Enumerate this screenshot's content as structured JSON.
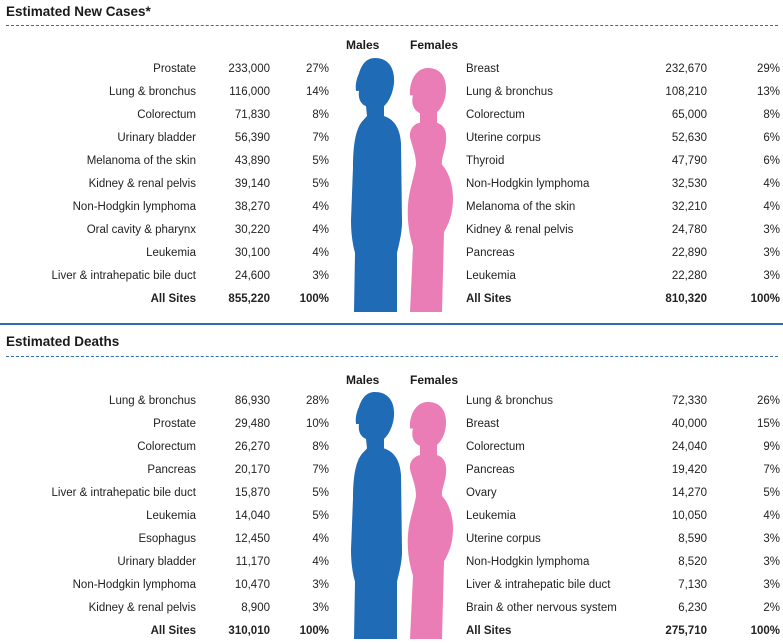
{
  "new_cases": {
    "title": "Estimated New Cases*",
    "males_label": "Males",
    "females_label": "Females",
    "males": [
      {
        "site": "Prostate",
        "count": "233,000",
        "pct": "27%"
      },
      {
        "site": "Lung & bronchus",
        "count": "116,000",
        "pct": "14%"
      },
      {
        "site": "Colorectum",
        "count": "71,830",
        "pct": "8%"
      },
      {
        "site": "Urinary bladder",
        "count": "56,390",
        "pct": "7%"
      },
      {
        "site": "Melanoma of the skin",
        "count": "43,890",
        "pct": "5%"
      },
      {
        "site": "Kidney & renal pelvis",
        "count": "39,140",
        "pct": "5%"
      },
      {
        "site": "Non-Hodgkin lymphoma",
        "count": "38,270",
        "pct": "4%"
      },
      {
        "site": "Oral cavity & pharynx",
        "count": "30,220",
        "pct": "4%"
      },
      {
        "site": "Leukemia",
        "count": "30,100",
        "pct": "4%"
      },
      {
        "site": "Liver & intrahepatic bile duct",
        "count": "24,600",
        "pct": "3%"
      }
    ],
    "males_total": {
      "site": "All Sites",
      "count": "855,220",
      "pct": "100%"
    },
    "females": [
      {
        "site": "Breast",
        "count": "232,670",
        "pct": "29%"
      },
      {
        "site": "Lung & bronchus",
        "count": "108,210",
        "pct": "13%"
      },
      {
        "site": "Colorectum",
        "count": "65,000",
        "pct": "8%"
      },
      {
        "site": "Uterine corpus",
        "count": "52,630",
        "pct": "6%"
      },
      {
        "site": "Thyroid",
        "count": "47,790",
        "pct": "6%"
      },
      {
        "site": "Non-Hodgkin lymphoma",
        "count": "32,530",
        "pct": "4%"
      },
      {
        "site": "Melanoma of the skin",
        "count": "32,210",
        "pct": "4%"
      },
      {
        "site": "Kidney & renal pelvis",
        "count": "24,780",
        "pct": "3%"
      },
      {
        "site": "Pancreas",
        "count": "22,890",
        "pct": "3%"
      },
      {
        "site": "Leukemia",
        "count": "22,280",
        "pct": "3%"
      }
    ],
    "females_total": {
      "site": "All Sites",
      "count": "810,320",
      "pct": "100%"
    }
  },
  "deaths": {
    "title": "Estimated Deaths",
    "males_label": "Males",
    "females_label": "Females",
    "males": [
      {
        "site": "Lung & bronchus",
        "count": "86,930",
        "pct": "28%"
      },
      {
        "site": "Prostate",
        "count": "29,480",
        "pct": "10%"
      },
      {
        "site": "Colorectum",
        "count": "26,270",
        "pct": "8%"
      },
      {
        "site": "Pancreas",
        "count": "20,170",
        "pct": "7%"
      },
      {
        "site": "Liver & intrahepatic bile duct",
        "count": "15,870",
        "pct": "5%"
      },
      {
        "site": "Leukemia",
        "count": "14,040",
        "pct": "5%"
      },
      {
        "site": "Esophagus",
        "count": "12,450",
        "pct": "4%"
      },
      {
        "site": "Urinary bladder",
        "count": "11,170",
        "pct": "4%"
      },
      {
        "site": "Non-Hodgkin lymphoma",
        "count": "10,470",
        "pct": "3%"
      },
      {
        "site": "Kidney & renal pelvis",
        "count": "8,900",
        "pct": "3%"
      }
    ],
    "males_total": {
      "site": "All Sites",
      "count": "310,010",
      "pct": "100%"
    },
    "females": [
      {
        "site": "Lung & bronchus",
        "count": "72,330",
        "pct": "26%"
      },
      {
        "site": "Breast",
        "count": "40,000",
        "pct": "15%"
      },
      {
        "site": "Colorectum",
        "count": "24,040",
        "pct": "9%"
      },
      {
        "site": "Pancreas",
        "count": "19,420",
        "pct": "7%"
      },
      {
        "site": "Ovary",
        "count": "14,270",
        "pct": "5%"
      },
      {
        "site": "Leukemia",
        "count": "10,050",
        "pct": "4%"
      },
      {
        "site": "Uterine corpus",
        "count": "8,590",
        "pct": "3%"
      },
      {
        "site": "Non-Hodgkin lymphoma",
        "count": "8,520",
        "pct": "3%"
      },
      {
        "site": "Liver & intrahepatic bile duct",
        "count": "7,130",
        "pct": "3%"
      },
      {
        "site": "Brain & other nervous system",
        "count": "6,230",
        "pct": "2%"
      }
    ],
    "females_total": {
      "site": "All Sites",
      "count": "275,710",
      "pct": "100%"
    }
  },
  "colors": {
    "male": "#1f6bb5",
    "female": "#ea7db5",
    "rule": "#2f6fb0"
  },
  "icons": {
    "male": "male-silhouette-icon",
    "female": "female-silhouette-icon"
  }
}
